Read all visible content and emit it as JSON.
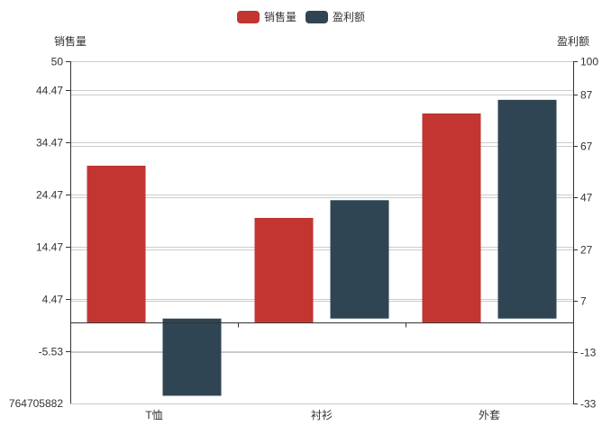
{
  "chart_data": {
    "type": "bar",
    "categories": [
      "T恤",
      "衬衫",
      "外套"
    ],
    "legend": {
      "position": "top-center"
    },
    "colors": {
      "sales": "#c23531",
      "profit": "#2f4554",
      "axis": "#333333",
      "grid": "#cccccc"
    },
    "series": [
      {
        "name": "销售量",
        "axis": "left",
        "color": "#c23531",
        "values": [
          30,
          20,
          40
        ]
      },
      {
        "name": "盈利额",
        "axis": "right",
        "color": "#2f4554",
        "values": [
          -30,
          46,
          85
        ]
      }
    ],
    "y_left": {
      "label": "销售量",
      "ylim": [
        -15.529411764705882,
        50
      ],
      "ticks": [
        50,
        44.47,
        34.47,
        24.47,
        14.47,
        4.47,
        -5.53
      ],
      "tick_labels": [
        "50",
        "44.47",
        "34.47",
        "24.47",
        "14.47",
        "4.47",
        "-5.53"
      ],
      "bottom_label": "764705882"
    },
    "y_right": {
      "label": "盈利额",
      "ylim": [
        -33,
        100
      ],
      "ticks": [
        100,
        87,
        67,
        47,
        27,
        7,
        -13,
        -33
      ],
      "tick_labels": [
        "100",
        "87",
        "67",
        "47",
        "27",
        "7",
        "-13",
        "-33"
      ]
    },
    "grid": true
  }
}
